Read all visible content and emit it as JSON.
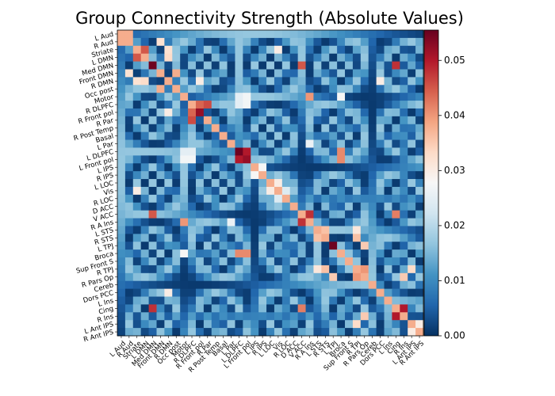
{
  "chart_data": {
    "type": "heatmap",
    "title": "Group Connectivity Strength (Absolute Values)",
    "labels": [
      "L Aud",
      "R Aud",
      "Striate",
      "L DMN",
      "Med DMN",
      "Front DMN",
      "R DMN",
      "Occ post",
      "Motor",
      "R DLPFC",
      "R Front pol",
      "R Par",
      "R Post Temp",
      "Basal",
      "L Par",
      "L DLPFC",
      "L Front pol",
      "L IPS",
      "R IPS",
      "L LOC",
      "Vis",
      "R LOC",
      "D ACC",
      "V ACC",
      "R A Ins",
      "L STS",
      "R STS",
      "L TPJ",
      "Broca",
      "Sup Front S",
      "R TPJ",
      "R Pars Op",
      "Cereb",
      "Dors PCC",
      "L Ins",
      "Cing",
      "R Ins",
      "L Ant IPS",
      "R Ant IPS"
    ],
    "colorbar": {
      "min": 0.0,
      "max": 0.0555,
      "ticks": [
        0.0,
        0.01,
        0.02,
        0.03,
        0.04,
        0.05
      ],
      "tick_labels": [
        "0.00",
        "0.01",
        "0.02",
        "0.03",
        "0.04",
        "0.05"
      ],
      "colormap": "RdBu_r"
    },
    "diagonal_value": 0.038,
    "strong_pairs": [
      {
        "a": 4,
        "b": 4,
        "v": 0.055
      },
      {
        "a": 4,
        "b": 23,
        "v": 0.045
      },
      {
        "a": 4,
        "b": 35,
        "v": 0.048
      },
      {
        "a": 1,
        "b": 5,
        "v": 0.032
      },
      {
        "a": 6,
        "b": 10,
        "v": 0.03
      },
      {
        "a": 9,
        "b": 10,
        "v": 0.044
      },
      {
        "a": 9,
        "b": 11,
        "v": 0.046
      },
      {
        "a": 10,
        "b": 10,
        "v": 0.052
      },
      {
        "a": 8,
        "b": 15,
        "v": 0.025
      },
      {
        "a": 8,
        "b": 16,
        "v": 0.027
      },
      {
        "a": 9,
        "b": 15,
        "v": 0.025
      },
      {
        "a": 9,
        "b": 16,
        "v": 0.027
      },
      {
        "a": 8,
        "b": 24,
        "v": 0.04
      },
      {
        "a": 8,
        "b": 28,
        "v": 0.028
      },
      {
        "a": 15,
        "b": 16,
        "v": 0.05
      },
      {
        "a": 15,
        "b": 15,
        "v": 0.055
      },
      {
        "a": 16,
        "b": 16,
        "v": 0.052
      },
      {
        "a": 14,
        "b": 24,
        "v": 0.026
      },
      {
        "a": 15,
        "b": 28,
        "v": 0.041
      },
      {
        "a": 16,
        "b": 28,
        "v": 0.041
      },
      {
        "a": 17,
        "b": 18,
        "v": 0.028
      },
      {
        "a": 19,
        "b": 20,
        "v": 0.03
      },
      {
        "a": 20,
        "b": 21,
        "v": 0.024
      },
      {
        "a": 23,
        "b": 24,
        "v": 0.048
      },
      {
        "a": 23,
        "b": 35,
        "v": 0.042
      },
      {
        "a": 25,
        "b": 26,
        "v": 0.036
      },
      {
        "a": 25,
        "b": 30,
        "v": 0.031
      },
      {
        "a": 26,
        "b": 30,
        "v": 0.036
      },
      {
        "a": 27,
        "b": 27,
        "v": 0.055
      },
      {
        "a": 27,
        "b": 31,
        "v": 0.035
      },
      {
        "a": 30,
        "b": 31,
        "v": 0.04
      },
      {
        "a": 31,
        "b": 36,
        "v": 0.035
      },
      {
        "a": 35,
        "b": 36,
        "v": 0.05
      },
      {
        "a": 2,
        "b": 3,
        "v": 0.045
      },
      {
        "a": 0,
        "b": 1,
        "v": 0.038
      },
      {
        "a": 2,
        "b": 6,
        "v": 0.032
      },
      {
        "a": 3,
        "b": 6,
        "v": 0.033
      },
      {
        "a": 5,
        "b": 7,
        "v": 0.038
      },
      {
        "a": 2,
        "b": 20,
        "v": 0.03
      },
      {
        "a": 6,
        "b": 33,
        "v": 0.03
      },
      {
        "a": 30,
        "b": 37,
        "v": 0.033
      },
      {
        "a": 37,
        "b": 38,
        "v": 0.03
      }
    ]
  }
}
